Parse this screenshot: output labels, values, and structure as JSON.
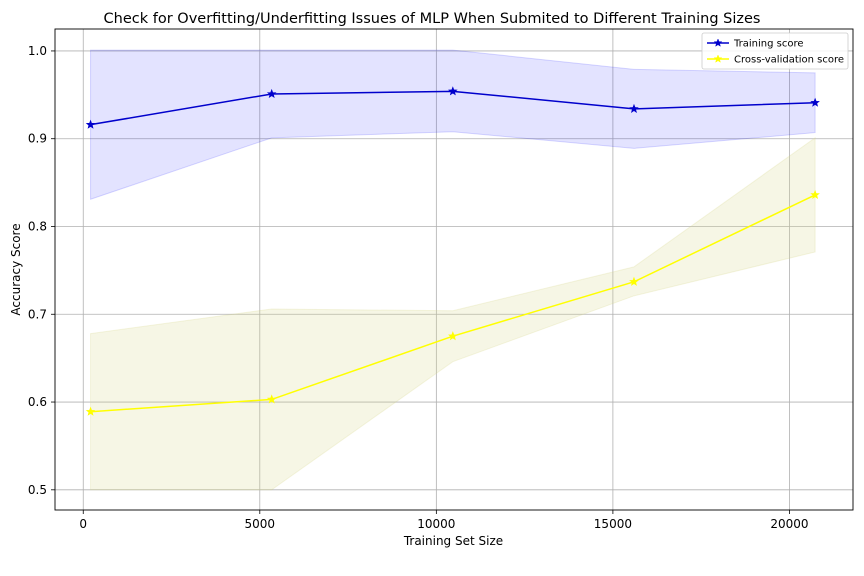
{
  "chart_data": {
    "type": "line",
    "title": "Check for Overfitting/Underfitting Issues of MLP When Submited to Different Training Sizes",
    "xlabel": "Training Set Size",
    "ylabel": "Accuracy Score",
    "xlim": [
      -800,
      21800
    ],
    "ylim": [
      0.477,
      1.025
    ],
    "xticks": [
      0,
      5000,
      10000,
      15000,
      20000
    ],
    "xtick_labels": [
      "0",
      "5000",
      "10000",
      "15000",
      "20000"
    ],
    "yticks": [
      0.5,
      0.6,
      0.7,
      0.8,
      0.9,
      1.0
    ],
    "ytick_labels": [
      "0.5",
      "0.6",
      "0.7",
      "0.8",
      "0.9",
      "1.0"
    ],
    "grid": true,
    "legend_position": "upper-right",
    "x": [
      207,
      5337,
      10467,
      15597,
      20727
    ],
    "series": [
      {
        "name": "Training score",
        "color": "#0000cc",
        "band_color": "#0000ff",
        "marker": "star",
        "values": [
          0.916,
          0.951,
          0.954,
          0.934,
          0.941
        ],
        "band_lower": [
          0.831,
          0.901,
          0.908,
          0.889,
          0.907
        ],
        "band_upper": [
          1.001,
          1.001,
          1.001,
          0.979,
          0.975
        ]
      },
      {
        "name": "Cross-validation score",
        "color": "#ffff00",
        "band_color": "#d8d88a",
        "marker": "star",
        "values": [
          0.589,
          0.603,
          0.675,
          0.737,
          0.836
        ],
        "band_lower": [
          0.5,
          0.5,
          0.646,
          0.721,
          0.771
        ],
        "band_upper": [
          0.678,
          0.706,
          0.704,
          0.754,
          0.901
        ]
      }
    ]
  }
}
